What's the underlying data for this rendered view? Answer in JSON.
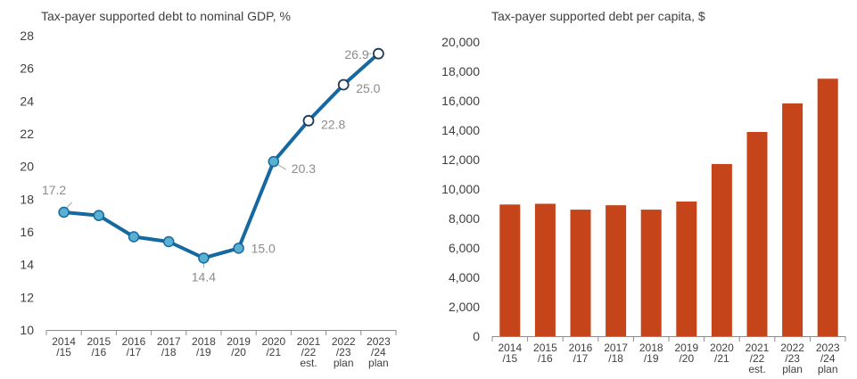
{
  "chart_data": [
    {
      "type": "line",
      "title": "Tax-payer supported debt to nominal GDP, %",
      "categories": [
        [
          "2014",
          "/15"
        ],
        [
          "2015",
          "/16"
        ],
        [
          "2016",
          "/17"
        ],
        [
          "2017",
          "/18"
        ],
        [
          "2018",
          "/19"
        ],
        [
          "2019",
          "/20"
        ],
        [
          "2020",
          "/21"
        ],
        [
          "2021",
          "/22",
          "est."
        ],
        [
          "2022",
          "/23",
          "plan"
        ],
        [
          "2023",
          "/24",
          "plan"
        ]
      ],
      "series": [
        {
          "values": [
            17.2,
            17.0,
            15.7,
            15.4,
            14.4,
            15.0,
            20.3,
            22.8,
            25.0,
            26.9
          ]
        }
      ],
      "data_labels": [
        {
          "index": 0,
          "text": "17.2"
        },
        {
          "index": 4,
          "text": "14.4"
        },
        {
          "index": 5,
          "text": "15.0"
        },
        {
          "index": 6,
          "text": "20.3"
        },
        {
          "index": 7,
          "text": "22.8"
        },
        {
          "index": 8,
          "text": "25.0"
        },
        {
          "index": 9,
          "text": "26.9"
        }
      ],
      "marker_style": {
        "actual": "filled",
        "forecast": "hollow",
        "forecast_from_index": 7
      },
      "ylim": [
        10,
        28
      ],
      "yticks": [
        10,
        12,
        14,
        16,
        18,
        20,
        22,
        24,
        26,
        28
      ],
      "grid": false,
      "colors": {
        "line": "#1569a0",
        "marker_fill": "#5ab0d0",
        "hollow_fill": "#ffffff",
        "label": "#8c8c8c"
      }
    },
    {
      "type": "bar",
      "title": "Tax-payer supported debt per capita, $",
      "categories": [
        [
          "2014",
          "/15"
        ],
        [
          "2015",
          "/16"
        ],
        [
          "2016",
          "/17"
        ],
        [
          "2017",
          "/18"
        ],
        [
          "2018",
          "/19"
        ],
        [
          "2019",
          "/20"
        ],
        [
          "2020",
          "/21"
        ],
        [
          "2021",
          "/22",
          "est."
        ],
        [
          "2022",
          "/23",
          "plan"
        ],
        [
          "2023",
          "/24",
          "plan"
        ]
      ],
      "series": [
        {
          "values": [
            8950,
            9000,
            8600,
            8900,
            8600,
            9150,
            11700,
            13880,
            15820,
            17500
          ]
        }
      ],
      "ylim": [
        0,
        20000
      ],
      "yticks": [
        "0",
        "2,000",
        "4,000",
        "6,000",
        "8,000",
        "10,000",
        "12,000",
        "14,000",
        "16,000",
        "18,000",
        "20,000"
      ],
      "grid": false,
      "colors": {
        "bar": "#c5441a"
      }
    }
  ]
}
